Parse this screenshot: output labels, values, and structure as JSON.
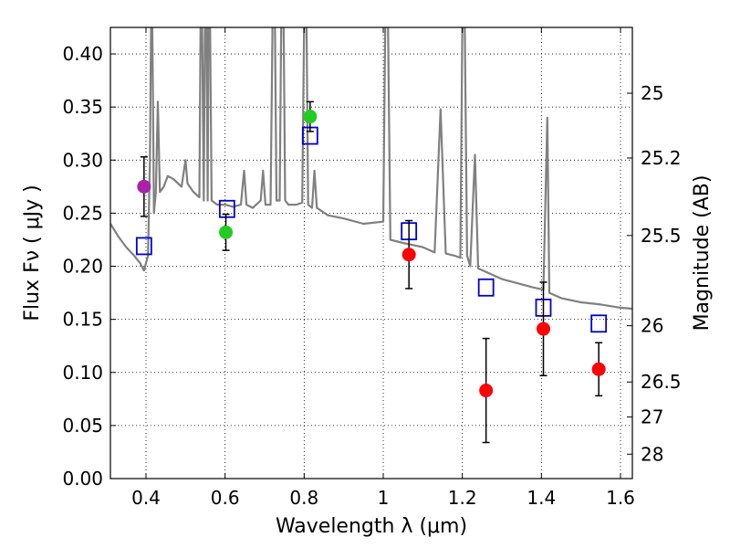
{
  "chart_data": {
    "type": "scatter",
    "xlabel": "Wavelength  λ (μm)",
    "ylabel": "Flux  Fν  ( μJy )",
    "y2label": "Magnitude (AB)",
    "xlim": [
      0.31,
      1.63
    ],
    "ylim": [
      0.0,
      0.425
    ],
    "grid": true,
    "x_ticks": [
      {
        "value": 0.4,
        "label": "0.4"
      },
      {
        "value": 0.6,
        "label": "0.6"
      },
      {
        "value": 0.8,
        "label": "0.8"
      },
      {
        "value": 1.0,
        "label": "1"
      },
      {
        "value": 1.2,
        "label": "1.2"
      },
      {
        "value": 1.4,
        "label": "1.4"
      },
      {
        "value": 1.6,
        "label": "1.6"
      }
    ],
    "y_ticks": [
      {
        "value": 0.0,
        "label": "0.00"
      },
      {
        "value": 0.05,
        "label": "0.05"
      },
      {
        "value": 0.1,
        "label": "0.10"
      },
      {
        "value": 0.15,
        "label": "0.15"
      },
      {
        "value": 0.2,
        "label": "0.20"
      },
      {
        "value": 0.25,
        "label": "0.25"
      },
      {
        "value": 0.3,
        "label": "0.30"
      },
      {
        "value": 0.35,
        "label": "0.35"
      },
      {
        "value": 0.4,
        "label": "0.40"
      }
    ],
    "mag_ticks": [
      {
        "flux": 0.363,
        "label": "25"
      },
      {
        "flux": 0.302,
        "label": "25.2"
      },
      {
        "flux": 0.229,
        "label": "25.5"
      },
      {
        "flux": 0.144,
        "label": "26"
      },
      {
        "flux": 0.091,
        "label": "26.5"
      },
      {
        "flux": 0.058,
        "label": "27"
      },
      {
        "flux": 0.023,
        "label": "28"
      }
    ],
    "colors": {
      "model": "#808080",
      "magenta": "#aa22aa",
      "green": "#22cc22",
      "red": "#ff0000",
      "model_box": "#0000cc",
      "errorbar": "#000000"
    },
    "observed": [
      {
        "x": 0.395,
        "y": 0.275,
        "err": 0.028,
        "color": "magenta"
      },
      {
        "x": 0.602,
        "y": 0.232,
        "err": 0.017,
        "color": "green"
      },
      {
        "x": 0.815,
        "y": 0.341,
        "err": 0.014,
        "color": "green"
      },
      {
        "x": 1.065,
        "y": 0.211,
        "err": 0.032,
        "color": "red"
      },
      {
        "x": 1.26,
        "y": 0.083,
        "err": 0.049,
        "color": "red"
      },
      {
        "x": 1.405,
        "y": 0.141,
        "err": 0.044,
        "color": "red"
      },
      {
        "x": 1.545,
        "y": 0.103,
        "err": 0.025,
        "color": "red"
      }
    ],
    "model_points": [
      {
        "x": 0.395,
        "y": 0.219
      },
      {
        "x": 0.605,
        "y": 0.254
      },
      {
        "x": 0.815,
        "y": 0.323
      },
      {
        "x": 1.065,
        "y": 0.233
      },
      {
        "x": 1.26,
        "y": 0.18
      },
      {
        "x": 1.405,
        "y": 0.161
      },
      {
        "x": 1.545,
        "y": 0.146
      }
    ],
    "model_spectrum": [
      [
        0.31,
        0.24
      ],
      [
        0.33,
        0.228
      ],
      [
        0.35,
        0.218
      ],
      [
        0.37,
        0.21
      ],
      [
        0.385,
        0.203
      ],
      [
        0.395,
        0.196
      ],
      [
        0.405,
        0.21
      ],
      [
        0.41,
        0.3
      ],
      [
        0.413,
        0.43
      ],
      [
        0.416,
        0.43
      ],
      [
        0.42,
        0.25
      ],
      [
        0.425,
        0.27
      ],
      [
        0.43,
        0.355
      ],
      [
        0.435,
        0.27
      ],
      [
        0.445,
        0.275
      ],
      [
        0.455,
        0.285
      ],
      [
        0.47,
        0.282
      ],
      [
        0.49,
        0.275
      ],
      [
        0.5,
        0.3
      ],
      [
        0.505,
        0.278
      ],
      [
        0.52,
        0.27
      ],
      [
        0.535,
        0.265
      ],
      [
        0.538,
        0.43
      ],
      [
        0.542,
        0.43
      ],
      [
        0.546,
        0.262
      ],
      [
        0.549,
        0.43
      ],
      [
        0.553,
        0.43
      ],
      [
        0.556,
        0.262
      ],
      [
        0.558,
        0.43
      ],
      [
        0.562,
        0.43
      ],
      [
        0.566,
        0.262
      ],
      [
        0.58,
        0.258
      ],
      [
        0.6,
        0.258
      ],
      [
        0.62,
        0.256
      ],
      [
        0.64,
        0.258
      ],
      [
        0.648,
        0.29
      ],
      [
        0.654,
        0.258
      ],
      [
        0.67,
        0.255
      ],
      [
        0.69,
        0.262
      ],
      [
        0.696,
        0.29
      ],
      [
        0.702,
        0.258
      ],
      [
        0.715,
        0.258
      ],
      [
        0.72,
        0.43
      ],
      [
        0.726,
        0.43
      ],
      [
        0.73,
        0.262
      ],
      [
        0.738,
        0.262
      ],
      [
        0.742,
        0.43
      ],
      [
        0.748,
        0.43
      ],
      [
        0.752,
        0.262
      ],
      [
        0.76,
        0.258
      ],
      [
        0.78,
        0.258
      ],
      [
        0.795,
        0.26
      ],
      [
        0.8,
        0.43
      ],
      [
        0.806,
        0.43
      ],
      [
        0.81,
        0.258
      ],
      [
        0.82,
        0.255
      ],
      [
        0.826,
        0.29
      ],
      [
        0.832,
        0.255
      ],
      [
        0.86,
        0.248
      ],
      [
        0.9,
        0.245
      ],
      [
        0.95,
        0.24
      ],
      [
        1.0,
        0.242
      ],
      [
        1.005,
        0.43
      ],
      [
        1.012,
        0.43
      ],
      [
        1.018,
        0.225
      ],
      [
        1.05,
        0.222
      ],
      [
        1.1,
        0.218
      ],
      [
        1.13,
        0.213
      ],
      [
        1.145,
        0.348
      ],
      [
        1.158,
        0.212
      ],
      [
        1.18,
        0.21
      ],
      [
        1.195,
        0.208
      ],
      [
        1.2,
        0.43
      ],
      [
        1.206,
        0.43
      ],
      [
        1.212,
        0.21
      ],
      [
        1.22,
        0.2
      ],
      [
        1.232,
        0.305
      ],
      [
        1.24,
        0.198
      ],
      [
        1.3,
        0.188
      ],
      [
        1.38,
        0.18
      ],
      [
        1.405,
        0.178
      ],
      [
        1.415,
        0.34
      ],
      [
        1.42,
        0.175
      ],
      [
        1.45,
        0.17
      ],
      [
        1.5,
        0.166
      ],
      [
        1.55,
        0.164
      ],
      [
        1.6,
        0.161
      ],
      [
        1.63,
        0.16
      ]
    ]
  }
}
